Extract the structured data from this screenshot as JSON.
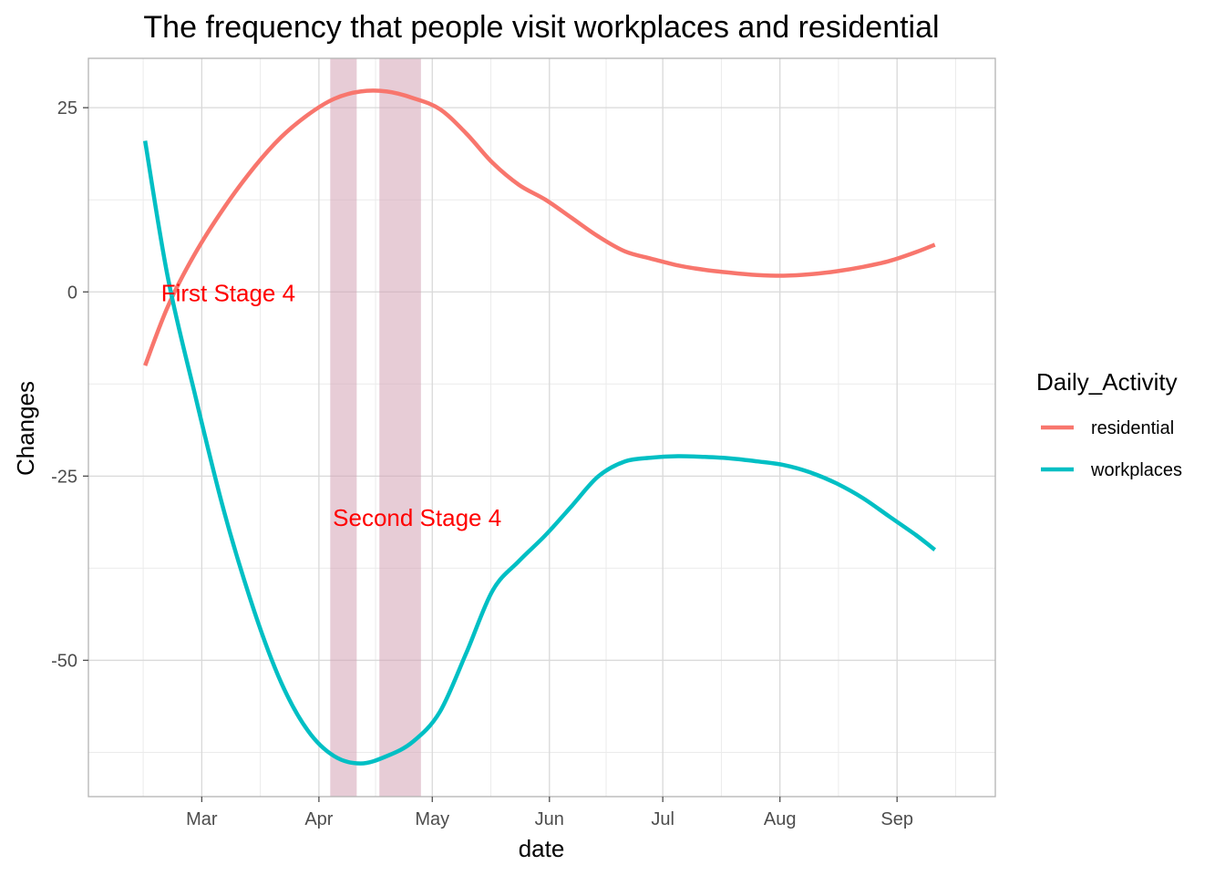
{
  "chart_data": {
    "type": "line",
    "title": "The frequency that people visit workplaces and residential",
    "xlabel": "date",
    "ylabel": "Changes",
    "x_ticks": [
      "2020-03-01",
      "2020-04-01",
      "2020-05-01",
      "2020-06-01",
      "2020-07-01",
      "2020-08-01",
      "2020-09-01"
    ],
    "x_tick_labels": [
      "Mar",
      "Apr",
      "May",
      "Jun",
      "Jul",
      "Aug",
      "Sep"
    ],
    "y_ticks": [
      -50,
      -25,
      0,
      25
    ],
    "y_tick_labels": [
      "-50",
      "-25",
      "0",
      "25"
    ],
    "xlim": [
      "2020-01-31",
      "2020-09-27"
    ],
    "ylim": [
      -68.5,
      31.7
    ],
    "grid": true,
    "legend": {
      "title": "Daily_Activity",
      "position": "right",
      "entries": [
        "residential",
        "workplaces"
      ]
    },
    "series": [
      {
        "name": "residential",
        "color": "#F8766D",
        "x": [
          "2020-02-15",
          "2020-02-21",
          "2020-02-28",
          "2020-03-07",
          "2020-03-15",
          "2020-03-22",
          "2020-03-29",
          "2020-04-05",
          "2020-04-12",
          "2020-04-19",
          "2020-04-26",
          "2020-05-03",
          "2020-05-10",
          "2020-05-17",
          "2020-05-24",
          "2020-05-31",
          "2020-06-07",
          "2020-06-14",
          "2020-06-21",
          "2020-06-28",
          "2020-07-05",
          "2020-07-12",
          "2020-07-19",
          "2020-07-26",
          "2020-08-02",
          "2020-08-09",
          "2020-08-16",
          "2020-08-23",
          "2020-08-30",
          "2020-09-06",
          "2020-09-11"
        ],
        "y": [
          -10,
          -2,
          5,
          11.5,
          17,
          21,
          24,
          26.2,
          27.2,
          27.2,
          26.3,
          24.8,
          21.5,
          17.5,
          14.5,
          12.5,
          10,
          7.5,
          5.5,
          4.5,
          3.6,
          3,
          2.6,
          2.3,
          2.2,
          2.4,
          2.8,
          3.4,
          4.2,
          5.4,
          6.4
        ]
      },
      {
        "name": "workplaces",
        "color": "#00BFC4",
        "x": [
          "2020-02-15",
          "2020-02-21",
          "2020-02-28",
          "2020-03-07",
          "2020-03-15",
          "2020-03-22",
          "2020-03-29",
          "2020-04-05",
          "2020-04-12",
          "2020-04-19",
          "2020-04-26",
          "2020-05-03",
          "2020-05-10",
          "2020-05-17",
          "2020-05-24",
          "2020-05-31",
          "2020-06-07",
          "2020-06-14",
          "2020-06-21",
          "2020-06-28",
          "2020-07-05",
          "2020-07-12",
          "2020-07-19",
          "2020-07-26",
          "2020-08-02",
          "2020-08-09",
          "2020-08-16",
          "2020-08-23",
          "2020-08-30",
          "2020-09-06",
          "2020-09-11"
        ],
        "y": [
          20.5,
          2,
          -13.5,
          -30,
          -43.5,
          -53,
          -59.5,
          -63,
          -64,
          -63,
          -61,
          -57,
          -49,
          -40.5,
          -36.5,
          -33,
          -29,
          -25,
          -23,
          -22.5,
          -22.3,
          -22.4,
          -22.6,
          -23,
          -23.5,
          -24.5,
          -26,
          -28,
          -30.5,
          -33,
          -35
        ]
      }
    ],
    "shaded_regions": [
      {
        "start": "2020-04-04",
        "end": "2020-04-11",
        "color": "#d4a3b4"
      },
      {
        "start": "2020-04-17",
        "end": "2020-04-28",
        "color": "#d4a3b4"
      }
    ],
    "annotations": [
      {
        "text": "First Stage 4",
        "x": "2020-03-08",
        "y": 0,
        "color": "#FF0000"
      },
      {
        "text": "Second Stage 4",
        "x": "2020-04-27",
        "y": -30.5,
        "color": "#FF0000"
      }
    ]
  }
}
